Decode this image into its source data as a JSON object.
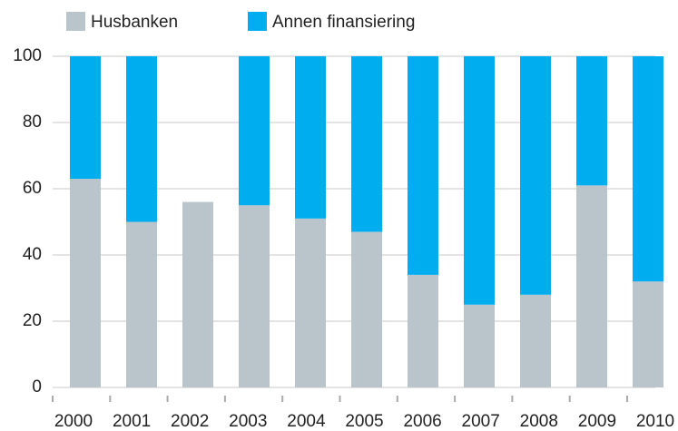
{
  "chart_data": {
    "type": "stacked_bar",
    "categories": [
      "2000",
      "2001",
      "2002",
      "2003",
      "2004",
      "2005",
      "2006",
      "2007",
      "2008",
      "2009",
      "2010"
    ],
    "series": [
      {
        "name": "Husbanken",
        "color": "#b9c4cb",
        "values": [
          63,
          50,
          56,
          55,
          51,
          47,
          34,
          25,
          28,
          61,
          32
        ]
      },
      {
        "name": "Annen finansiering",
        "color": "#00aeef",
        "values": [
          37,
          50,
          0,
          45,
          49,
          53,
          66,
          75,
          72,
          39,
          68
        ]
      }
    ],
    "ylim": [
      0,
      100
    ],
    "yticks": [
      0,
      20,
      40,
      60,
      80,
      100
    ],
    "grid": true,
    "legend": "top"
  }
}
